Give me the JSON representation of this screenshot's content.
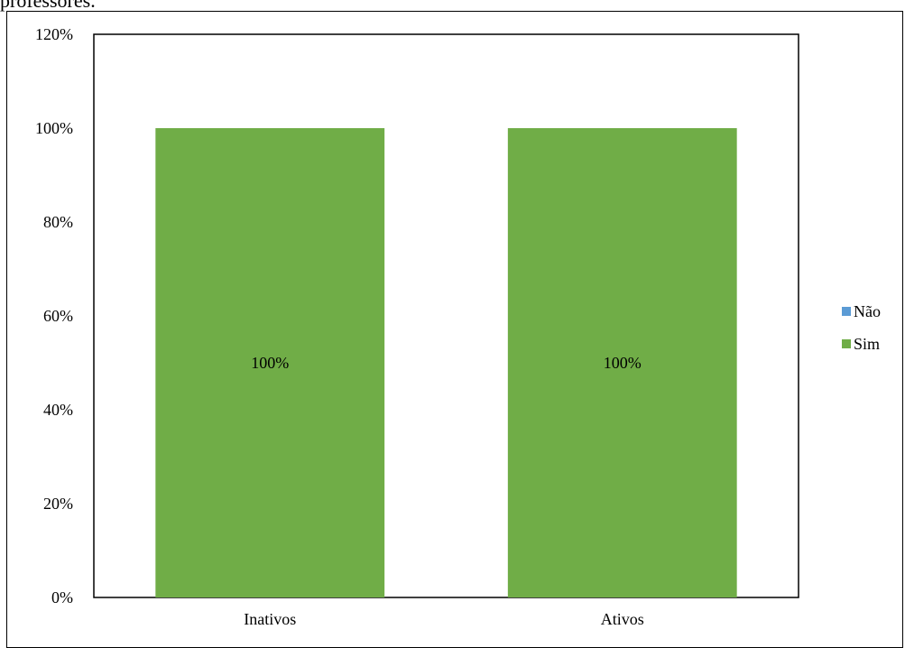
{
  "caption_fragment": "professores.",
  "chart_data": {
    "type": "bar",
    "stacked": true,
    "categories": [
      "Inativos",
      "Ativos"
    ],
    "series": [
      {
        "name": "Não",
        "values": [
          0,
          0
        ],
        "color": "#5b9bd5"
      },
      {
        "name": "Sim",
        "values": [
          100,
          100
        ],
        "color": "#70ad47"
      }
    ],
    "data_labels": [
      "100%",
      "100%"
    ],
    "y_ticks": [
      "0%",
      "20%",
      "40%",
      "60%",
      "80%",
      "100%",
      "120%"
    ],
    "ylim": [
      0,
      120
    ],
    "grid": false,
    "legend_position": "right"
  }
}
